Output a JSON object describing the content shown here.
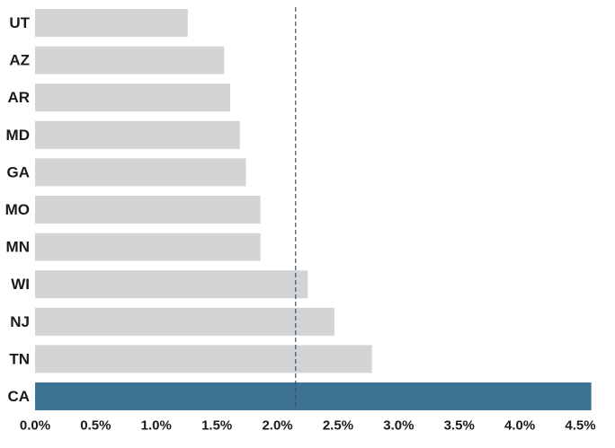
{
  "chart_data": {
    "type": "bar",
    "orientation": "horizontal",
    "categories": [
      "UT",
      "AZ",
      "AR",
      "MD",
      "GA",
      "MO",
      "MN",
      "WI",
      "NJ",
      "TN",
      "CA"
    ],
    "values": [
      1.26,
      1.56,
      1.61,
      1.69,
      1.74,
      1.86,
      1.86,
      2.25,
      2.47,
      2.78,
      4.59
    ],
    "highlight": "CA",
    "colors": {
      "bar": "#d3d4d6",
      "highlight": "#3f7396",
      "reference_line": "#2f5670"
    },
    "reference_line": 2.15,
    "xlim": [
      0,
      4.6
    ],
    "xticks": [
      0,
      0.5,
      1.0,
      1.5,
      2.0,
      2.5,
      3.0,
      3.5,
      4.0,
      4.5
    ],
    "xtick_labels": [
      "0.0%",
      "0.5%",
      "1.0%",
      "1.5%",
      "2.0%",
      "2.5%",
      "3.0%",
      "3.5%",
      "4.0%",
      "4.5%"
    ],
    "title": "",
    "xlabel": "",
    "ylabel": "",
    "grid": false,
    "legend": "none"
  }
}
